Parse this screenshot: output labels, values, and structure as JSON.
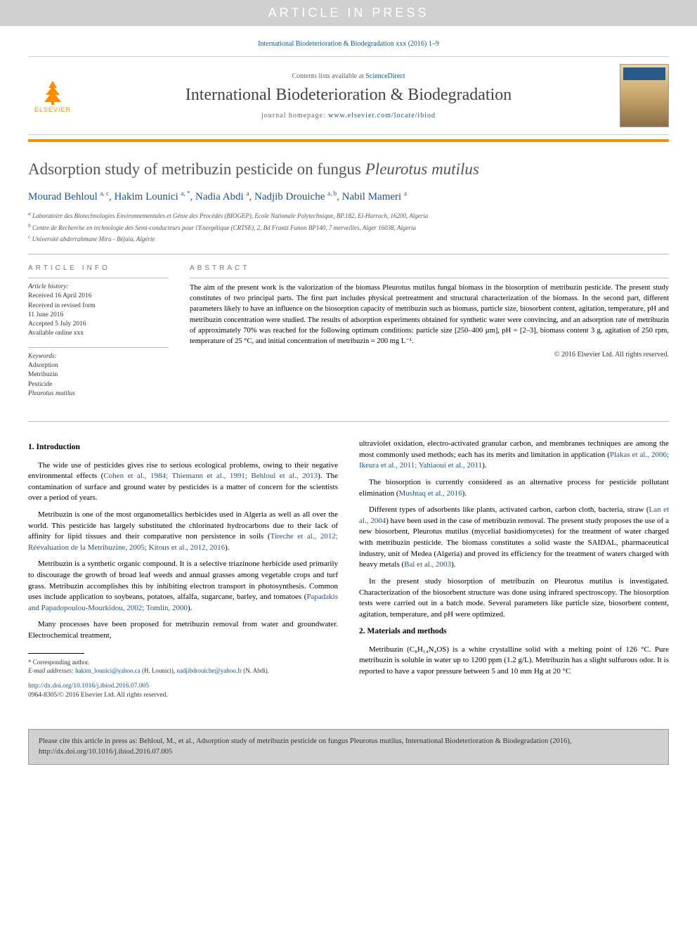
{
  "banner": "ARTICLE IN PRESS",
  "citation_top": "International Biodeterioration & Biodegradation xxx (2016) 1–9",
  "head": {
    "publisher": "ELSEVIER",
    "contents": "Contents lists available at ",
    "sd": "ScienceDirect",
    "journal": "International Biodeterioration & Biodegradation",
    "homepage_label": "journal homepage: ",
    "homepage_url": "www.elsevier.com/locate/ibiod"
  },
  "title_main": "Adsorption study of metribuzin pesticide on fungus ",
  "title_italic": "Pleurotus mutilus",
  "authors": [
    {
      "name": "Mourad Behloul",
      "sup": "a, c"
    },
    {
      "name": "Hakim Lounici",
      "sup": "a, *"
    },
    {
      "name": "Nadia Abdi",
      "sup": "a"
    },
    {
      "name": "Nadjib Drouiche",
      "sup": "a, b"
    },
    {
      "name": "Nabil Mameri",
      "sup": "a"
    }
  ],
  "affiliations": [
    {
      "sup": "a",
      "text": "Laboratoire des Biotechnologies Environnementales et Génie des Procédés (BIOGEP), Ecole Nationale Polytechnique, BP.182, El-Harrach, 16200, Algeria"
    },
    {
      "sup": "b",
      "text": "Centre de Recherche en technologie des Semi-conducteurs pour l'Energétique (CRTSE), 2, Bd Frantz Fanon BP140, 7 merveilles, Alger 16038, Algeria"
    },
    {
      "sup": "c",
      "text": "Université abderrahmane Mira - Béjaïa, Algérie"
    }
  ],
  "info_head": "ARTICLE INFO",
  "abs_head": "ABSTRACT",
  "history_label": "Article history:",
  "history": [
    "Received 16 April 2016",
    "Received in revised form",
    "11 June 2016",
    "Accepted 5 July 2016",
    "Available online xxx"
  ],
  "keywords_label": "Keywords:",
  "keywords": [
    "Adsorption",
    "Metribuzin",
    "Pesticide",
    "Pleurotus mutilus"
  ],
  "abstract": "The aim of the present work is the valorization of the biomass Pleurotus mutilus fungal biomass in the biosorption of metribuzin pesticide. The present study constitutes of two principal parts. The first part includes physical pretreatment and structural characterization of the biomass. In the second part, different parameters likely to have an influence on the biosorption capacity of metribuzin such as biomass, particle size, biosorbent content, agitation, temperature, pH and metribuzin concentration were studied. The results of adsorption experiments obtained for synthetic water were convincing, and an adsorption rate of metribuzin of approximately 70% was reached for the following optimum conditions: particle size [250–400 µm], pH = [2–3], biomass content 3 g, agitation of 250 rpm, temperature of 25 °C, and initial concentration of metribuzin = 200 mg L⁻¹.",
  "copyright": "© 2016 Elsevier Ltd. All rights reserved.",
  "sections": {
    "intro_head": "1. Introduction",
    "intro_p1a": "The wide use of pesticides gives rise to serious ecological problems, owing to their negative environmental effects (",
    "intro_p1_ref": "Cohen et al., 1984; Thiemann et al., 1991; Behloul et al., 2013",
    "intro_p1b": "). The contamination of surface and ground water by pesticides is a matter of concern for the scientists over a period of years.",
    "intro_p2a": "Metribuzin is one of the most organometallics herbicides used in Algeria as well as all over the world. This pesticide has largely substituted the chlorinated hydrocarbons due to their lack of affinity for lipid tissues and their comparative non persistence in soils (",
    "intro_p2_ref": "Tireche et al., 2012; Réévaluation de la Metribuzine, 2005; Kitous et al., 2012, 2016",
    "intro_p2b": ").",
    "intro_p3a": "Metribuzin is a synthetic organic compound. It is a selective triazinone herbicide used primarily to discourage the growth of broad leaf weeds and annual grasses among vegetable crops and turf grass. Metribuzin accomplishes this by inhibiting electron transport in photosynthesis. Common uses include application to soybeans, potatoes, alfalfa, sugarcane, barley, and tomatoes (",
    "intro_p3_ref": "Papadakis and Papadopoulou-Mourkidou, 2002; Tomlin, 2000",
    "intro_p3b": ").",
    "intro_p4": "Many processes have been proposed for metribuzin removal from water and groundwater. Electrochemical treatment,",
    "col2_p1a": "ultraviolet oxidation, electro-activated granular carbon, and membranes techniques are among the most commonly used methods; each has its merits and limitation in application (",
    "col2_p1_ref": "Plakas et al., 2006; Ikeura et al., 2011; Yahiaoui et al., 2011",
    "col2_p1b": ").",
    "col2_p2a": "The biosorption is currently considered as an alternative process for pesticide pollutant elimination (",
    "col2_p2_ref": "Mushtaq et al., 2016",
    "col2_p2b": ").",
    "col2_p3a": "Different types of adsorbents like plants, activated carbon, carbon cloth, bacteria, straw (",
    "col2_p3_ref": "Lan et al., 2004",
    "col2_p3b": ") have been used in the case of metribuzin removal. The present study proposes the use of a new biosorbent, Pleurotus mutilus (mycelial basidiomycetes) for the treatment of water charged with metribuzin pesticide. The biomass constitutes a solid waste the SAIDAL, pharmaceutical industry, unit of Medea (Algeria) and proved its efficiency for the treatment of waters charged with heavy metals (",
    "col2_p3_ref2": "Bal et al., 2003",
    "col2_p3c": ").",
    "col2_p4": "In the present study biosorption of metribuzin on Pleurotus mutilus is investigated. Characterization of the biosorbent structure was done using infrared spectroscopy. The biosorption tests were carried out in a batch mode. Several parameters like particle size, biosorbent content, agitation, temperature, and pH were optimized.",
    "mm_head": "2. Materials and methods",
    "mm_p1": "Metribuzin (C₈H₁₄N₄OS) is a white crystalline solid with a melting point of 126 °C. Pure metribuzin is soluble in water up to 1200 ppm (1.2 g/L). Metribuzin has a slight sulfurous odor. It is reported to have a vapor pressure between 5 and 10 mm Hg at 20 °C"
  },
  "footnote": {
    "corr": "* Corresponding author.",
    "email_label": "E-mail addresses: ",
    "email1": "hakim_lounici@yahoo.ca",
    "email1_name": " (H. Lounici), ",
    "email2": "nadjibdrouiche@yahoo.fr",
    "email2_name": " (N. Abdi)."
  },
  "doi": {
    "url": "http://dx.doi.org/10.1016/j.ibiod.2016.07.005",
    "issn": "0964-8305/© 2016 Elsevier Ltd. All rights reserved."
  },
  "cite_box": "Please cite this article in press as: Behloul, M., et al., Adsorption study of metribuzin pesticide on fungus Pleurotus mutilus, International Biodeterioration & Biodegradation (2016), http://dx.doi.org/10.1016/j.ibiod.2016.07.005"
}
